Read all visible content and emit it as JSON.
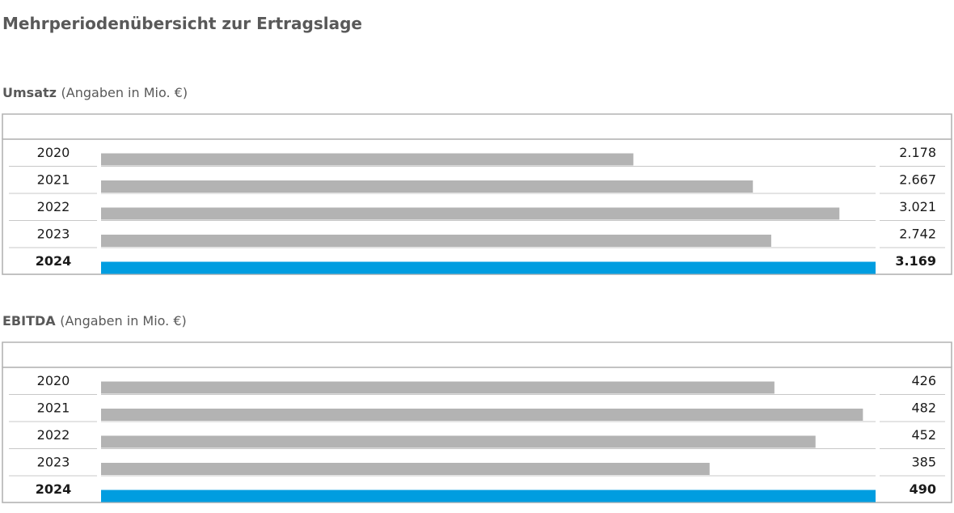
{
  "page": {
    "title": "Mehrperiodenübersicht zur Ertragslage"
  },
  "colors": {
    "bar_default": "#b3b3b3",
    "bar_highlight": "#009de0",
    "frame": "#b3b3b3",
    "row_divider": "#c8c8c8"
  },
  "chart_data": [
    {
      "type": "bar",
      "orientation": "horizontal",
      "title_bold": "Umsatz",
      "title_unit": "(Angaben in Mio. €)",
      "categories": [
        "2020",
        "2021",
        "2022",
        "2023",
        "2024"
      ],
      "value_labels": [
        "2.178",
        "2.667",
        "3.021",
        "2.742",
        "3.169"
      ],
      "values": [
        2178,
        2667,
        3021,
        2742,
        3169
      ],
      "highlight_index": 4,
      "grid": false
    },
    {
      "type": "bar",
      "orientation": "horizontal",
      "title_bold": "EBITDA",
      "title_unit": "(Angaben in Mio. €)",
      "categories": [
        "2020",
        "2021",
        "2022",
        "2023",
        "2024"
      ],
      "value_labels": [
        "426",
        "482",
        "452",
        "385",
        "490"
      ],
      "values": [
        426,
        482,
        452,
        385,
        490
      ],
      "highlight_index": 4,
      "grid": false
    }
  ]
}
